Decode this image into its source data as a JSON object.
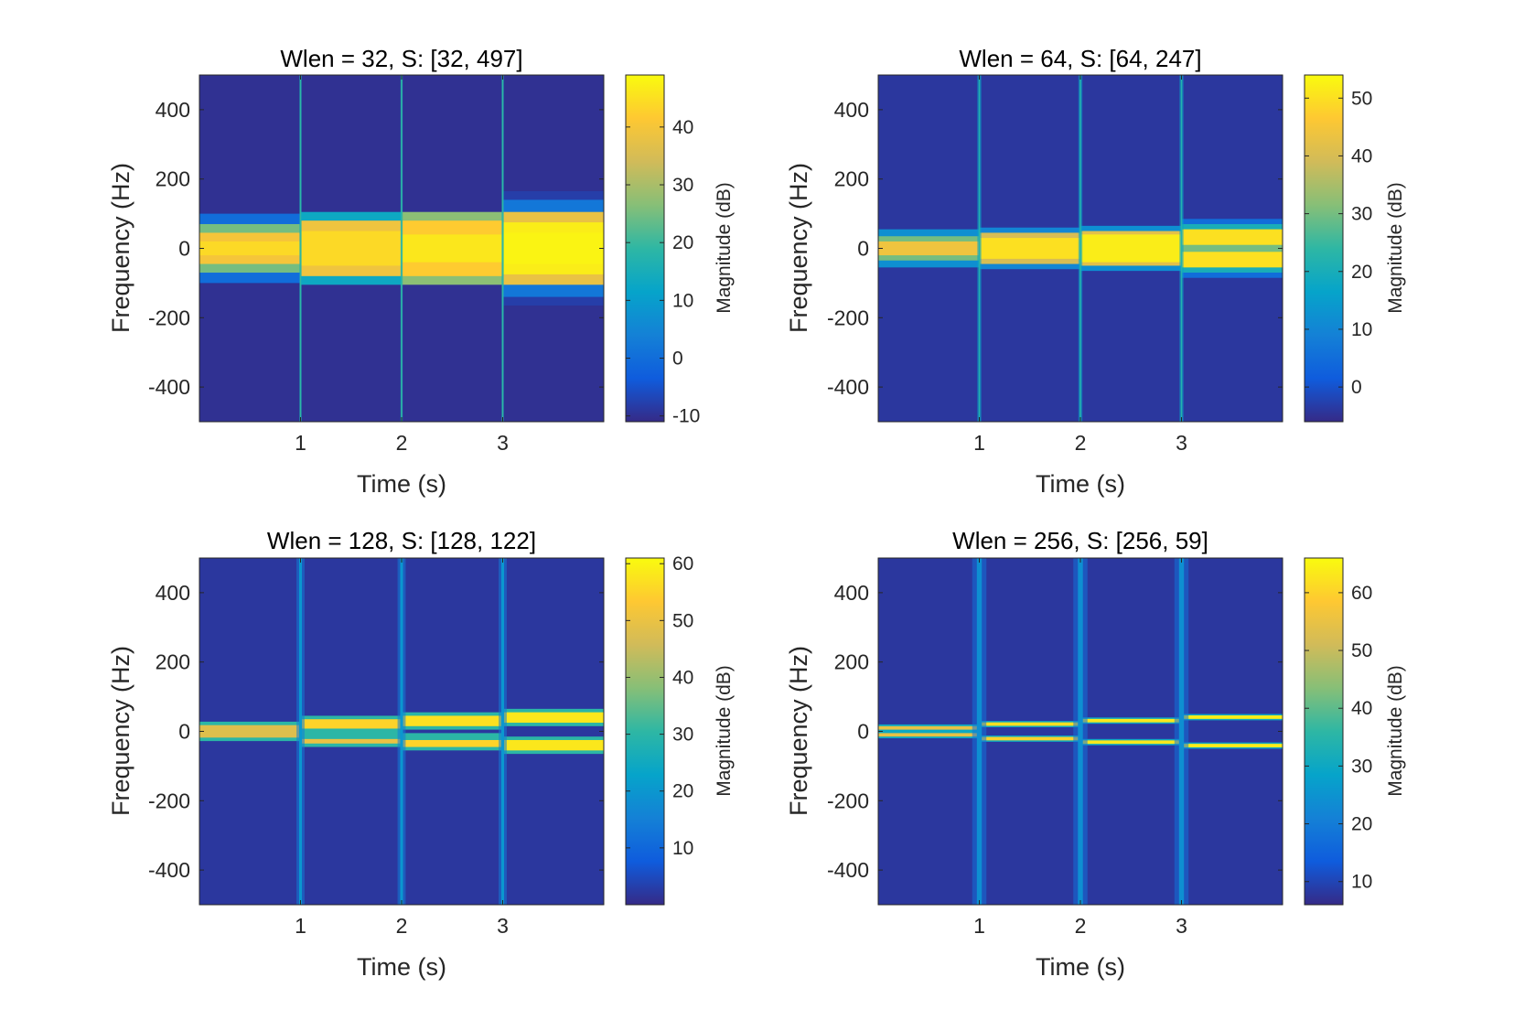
{
  "colors": {
    "background": "#3E26A8",
    "axis": "#262626",
    "parula": [
      "#352A87",
      "#0F5CDD",
      "#1481D6",
      "#06A4CA",
      "#2EB7A4",
      "#87BF77",
      "#D1BB59",
      "#FEC832",
      "#F9FB0E"
    ]
  },
  "chart_data": [
    {
      "type": "heatmap",
      "title": "Wlen = 32, S: [32, 497]",
      "xlabel": "Time (s)",
      "ylabel": "Frequency (Hz)",
      "xlim": [
        0,
        4
      ],
      "ylim": [
        -500,
        500
      ],
      "x_ticks": [
        1,
        2,
        3
      ],
      "x_tick_labels": [
        "1",
        "2",
        "3"
      ],
      "y_ticks": [
        400,
        200,
        0,
        -200,
        -400
      ],
      "y_tick_labels": [
        "400",
        "200",
        "0",
        "-200",
        "-400"
      ],
      "colorbar": {
        "label": "Magnitude (dB)",
        "ticks": [
          40,
          30,
          20,
          10,
          0,
          -10
        ],
        "tick_labels": [
          "40",
          "30",
          "20",
          "10",
          "0",
          "-10"
        ],
        "range": [
          -11,
          49
        ]
      },
      "floor_db": -10,
      "segments": [
        {
          "t_start": 0,
          "t_end": 1,
          "bands": [
            {
              "f_min": -100,
              "f_max": 100,
              "db": 0
            },
            {
              "f_min": -70,
              "f_max": 70,
              "db": 25
            },
            {
              "f_min": -45,
              "f_max": 45,
              "db": 40
            },
            {
              "f_min": -20,
              "f_max": 20,
              "db": 44
            }
          ]
        },
        {
          "t_start": 1,
          "t_end": 2,
          "bands": [
            {
              "f_min": -105,
              "f_max": 105,
              "db": 13
            },
            {
              "f_min": -80,
              "f_max": 80,
              "db": 39
            },
            {
              "f_min": -50,
              "f_max": 50,
              "db": 44
            }
          ]
        },
        {
          "t_start": 2,
          "t_end": 3,
          "bands": [
            {
              "f_min": -105,
              "f_max": 105,
              "db": 27
            },
            {
              "f_min": -80,
              "f_max": 80,
              "db": 42
            },
            {
              "f_min": -40,
              "f_max": 40,
              "db": 46
            }
          ]
        },
        {
          "t_start": 3,
          "t_end": 4,
          "bands": [
            {
              "f_min": -165,
              "f_max": 165,
              "db": -8
            },
            {
              "f_min": -140,
              "f_max": 140,
              "db": 2
            },
            {
              "f_min": -105,
              "f_max": 105,
              "db": 38
            },
            {
              "f_min": -75,
              "f_max": 75,
              "db": 47
            },
            {
              "f_min": -45,
              "f_max": 45,
              "db": 48
            }
          ]
        }
      ],
      "transients": [
        {
          "t": 1,
          "db": 13,
          "spread": 0.01
        },
        {
          "t": 2,
          "db": 13,
          "spread": 0.01
        },
        {
          "t": 3,
          "db": 13,
          "spread": 0.01
        }
      ]
    },
    {
      "type": "heatmap",
      "title": "Wlen = 64, S: [64, 247]",
      "xlabel": "Time (s)",
      "ylabel": "Frequency (Hz)",
      "xlim": [
        0,
        4
      ],
      "ylim": [
        -500,
        500
      ],
      "x_ticks": [
        1,
        2,
        3
      ],
      "x_tick_labels": [
        "1",
        "2",
        "3"
      ],
      "y_ticks": [
        400,
        200,
        0,
        -200,
        -400
      ],
      "y_tick_labels": [
        "400",
        "200",
        "0",
        "-200",
        "-400"
      ],
      "colorbar": {
        "label": "Magnitude (dB)",
        "ticks": [
          50,
          40,
          30,
          20,
          10,
          0
        ],
        "tick_labels": [
          "50",
          "40",
          "30",
          "20",
          "10",
          "0"
        ],
        "range": [
          -6,
          54
        ]
      },
      "floor_db": -4,
      "segments": [
        {
          "t_start": 0,
          "t_end": 1,
          "bands": [
            {
              "f_min": -55,
              "f_max": 55,
              "db": 12
            },
            {
              "f_min": -35,
              "f_max": 35,
              "db": 30
            },
            {
              "f_min": -20,
              "f_max": 20,
              "db": 44
            }
          ]
        },
        {
          "t_start": 1,
          "t_end": 2,
          "bands": [
            {
              "f_min": -60,
              "f_max": 60,
              "db": 10
            },
            {
              "f_min": -45,
              "f_max": 45,
              "db": 40
            },
            {
              "f_min": -30,
              "f_max": 30,
              "db": 50
            }
          ]
        },
        {
          "t_start": 2,
          "t_end": 3,
          "bands": [
            {
              "f_min": -65,
              "f_max": 65,
              "db": 12
            },
            {
              "f_min": -50,
              "f_max": 50,
              "db": 42
            },
            {
              "f_min": -40,
              "f_max": 40,
              "db": 52
            }
          ]
        },
        {
          "t_start": 3,
          "t_end": 4,
          "bands": [
            {
              "f_min": -85,
              "f_max": 85,
              "db": 5
            },
            {
              "f_min": -70,
              "f_max": 70,
              "db": 20
            },
            {
              "f_min": -55,
              "f_max": 55,
              "db": 50
            },
            {
              "f_min": -10,
              "f_max": 10,
              "db": 30
            }
          ]
        }
      ],
      "transients": [
        {
          "t": 1,
          "db": 16,
          "spread": 0.02
        },
        {
          "t": 2,
          "db": 16,
          "spread": 0.02
        },
        {
          "t": 3,
          "db": 16,
          "spread": 0.02
        }
      ]
    },
    {
      "type": "heatmap",
      "title": "Wlen = 128, S: [128, 122]",
      "xlabel": "Time (s)",
      "ylabel": "Frequency (Hz)",
      "xlim": [
        0,
        4
      ],
      "ylim": [
        -500,
        500
      ],
      "x_ticks": [
        1,
        2,
        3
      ],
      "x_tick_labels": [
        "1",
        "2",
        "3"
      ],
      "y_ticks": [
        400,
        200,
        0,
        -200,
        -400
      ],
      "y_tick_labels": [
        "400",
        "200",
        "0",
        "-200",
        "-400"
      ],
      "colorbar": {
        "label": "Magnitude (dB)",
        "ticks": [
          60,
          50,
          40,
          30,
          20,
          10
        ],
        "tick_labels": [
          "60",
          "50",
          "40",
          "30",
          "20",
          "10"
        ],
        "range": [
          0,
          61
        ]
      },
      "floor_db": 2,
      "segments": [
        {
          "t_start": 0,
          "t_end": 1,
          "bands": [
            {
              "f_min": -28,
              "f_max": 28,
              "db": 30
            },
            {
              "f_min": -18,
              "f_max": 18,
              "db": 48
            }
          ]
        },
        {
          "t_start": 1,
          "t_end": 2,
          "bands": [
            {
              "f_min": 0,
              "f_max": 45,
              "db": 30
            },
            {
              "f_min": 8,
              "f_max": 35,
              "db": 55
            },
            {
              "f_min": -45,
              "f_max": 0,
              "db": 30
            },
            {
              "f_min": -35,
              "f_max": -22,
              "db": 50
            }
          ]
        },
        {
          "t_start": 2,
          "t_end": 3,
          "bands": [
            {
              "f_min": 5,
              "f_max": 55,
              "db": 30
            },
            {
              "f_min": 15,
              "f_max": 45,
              "db": 57
            },
            {
              "f_min": -55,
              "f_max": -5,
              "db": 30
            },
            {
              "f_min": -45,
              "f_max": -25,
              "db": 55
            }
          ]
        },
        {
          "t_start": 3,
          "t_end": 4,
          "bands": [
            {
              "f_min": 15,
              "f_max": 65,
              "db": 30
            },
            {
              "f_min": 25,
              "f_max": 55,
              "db": 58
            },
            {
              "f_min": -65,
              "f_max": -15,
              "db": 30
            },
            {
              "f_min": -55,
              "f_max": -25,
              "db": 58
            }
          ]
        }
      ],
      "transients": [
        {
          "t": 1,
          "db": 14,
          "spread": 0.04
        },
        {
          "t": 2,
          "db": 14,
          "spread": 0.04
        },
        {
          "t": 3,
          "db": 14,
          "spread": 0.04
        }
      ]
    },
    {
      "type": "heatmap",
      "title": "Wlen = 256, S: [256, 59]",
      "xlabel": "Time (s)",
      "ylabel": "Frequency (Hz)",
      "xlim": [
        0,
        4
      ],
      "ylim": [
        -500,
        500
      ],
      "x_ticks": [
        1,
        2,
        3
      ],
      "x_tick_labels": [
        "1",
        "2",
        "3"
      ],
      "y_ticks": [
        400,
        200,
        0,
        -200,
        -400
      ],
      "y_tick_labels": [
        "400",
        "200",
        "0",
        "-200",
        "-400"
      ],
      "colorbar": {
        "label": "Magnitude (dB)",
        "ticks": [
          60,
          50,
          40,
          30,
          20,
          10
        ],
        "tick_labels": [
          "60",
          "50",
          "40",
          "30",
          "20",
          "10"
        ],
        "range": [
          6,
          66
        ]
      },
      "floor_db": 8,
      "segments": [
        {
          "t_start": 0,
          "t_end": 1,
          "bands": [
            {
              "f_min": 0,
              "f_max": 20,
              "db": 30
            },
            {
              "f_min": 5,
              "f_max": 15,
              "db": 55
            },
            {
              "f_min": -20,
              "f_max": 0,
              "db": 30
            },
            {
              "f_min": -15,
              "f_max": -5,
              "db": 55
            }
          ]
        },
        {
          "t_start": 1,
          "t_end": 2,
          "bands": [
            {
              "f_min": 12,
              "f_max": 30,
              "db": 30
            },
            {
              "f_min": 16,
              "f_max": 26,
              "db": 62
            },
            {
              "f_min": -30,
              "f_max": -12,
              "db": 30
            },
            {
              "f_min": -26,
              "f_max": -16,
              "db": 60
            }
          ]
        },
        {
          "t_start": 2,
          "t_end": 3,
          "bands": [
            {
              "f_min": 22,
              "f_max": 40,
              "db": 30
            },
            {
              "f_min": 26,
              "f_max": 36,
              "db": 63
            },
            {
              "f_min": -40,
              "f_max": -22,
              "db": 30
            },
            {
              "f_min": -36,
              "f_max": -26,
              "db": 63
            }
          ]
        },
        {
          "t_start": 3,
          "t_end": 4,
          "bands": [
            {
              "f_min": 32,
              "f_max": 50,
              "db": 30
            },
            {
              "f_min": 36,
              "f_max": 46,
              "db": 64
            },
            {
              "f_min": -50,
              "f_max": -32,
              "db": 30
            },
            {
              "f_min": -46,
              "f_max": -36,
              "db": 64
            }
          ]
        }
      ],
      "transients": [
        {
          "t": 1,
          "db": 18,
          "spread": 0.07
        },
        {
          "t": 2,
          "db": 18,
          "spread": 0.07
        },
        {
          "t": 3,
          "db": 18,
          "spread": 0.07
        }
      ]
    }
  ]
}
